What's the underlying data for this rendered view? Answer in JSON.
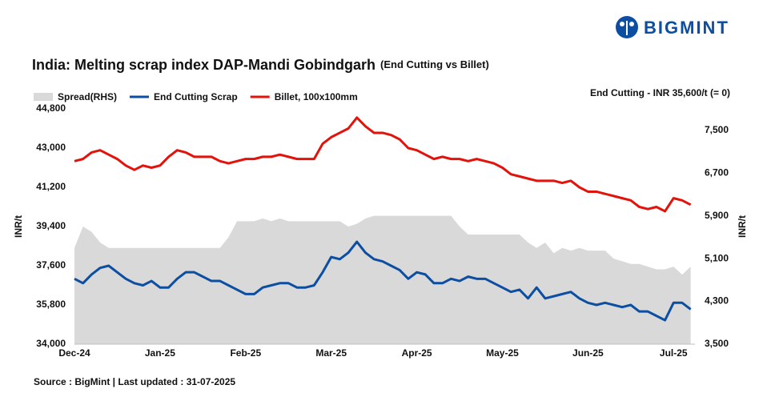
{
  "logo": "BIGMINT",
  "source": "Source : BigMint | Last updated : 31-07-2025",
  "chart_data": {
    "type": "line",
    "title": "India: Melting scrap index DAP-Mandi Gobindgarh",
    "subtitle": "(End Cutting vs Billet)",
    "annotation": "End Cutting - INR 35,600/t (= 0)",
    "ylabel": "INR/t",
    "y2label": "INR/t",
    "legend": "top-left",
    "categories": [
      "Dec-24",
      null,
      null,
      null,
      null,
      null,
      null,
      null,
      null,
      null,
      "Jan-25",
      null,
      null,
      null,
      null,
      null,
      null,
      null,
      null,
      null,
      "Feb-25",
      null,
      null,
      null,
      null,
      null,
      null,
      null,
      null,
      null,
      "Mar-25",
      null,
      null,
      null,
      null,
      null,
      null,
      null,
      null,
      null,
      "Apr-25",
      null,
      null,
      null,
      null,
      null,
      null,
      null,
      null,
      null,
      "May-25",
      null,
      null,
      null,
      null,
      null,
      null,
      null,
      null,
      null,
      "Jun-25",
      null,
      null,
      null,
      null,
      null,
      null,
      null,
      null,
      null,
      "Jul-25",
      null,
      null
    ],
    "series": [
      {
        "name": "Spread(RHS)",
        "type": "area",
        "axis": "y2",
        "color": "#d9d9d9",
        "values": [
          5300,
          5700,
          5600,
          5400,
          5300,
          5300,
          5300,
          5300,
          5300,
          5300,
          5300,
          5300,
          5300,
          5300,
          5300,
          5300,
          5300,
          5300,
          5500,
          5800,
          5800,
          5800,
          5850,
          5800,
          5850,
          5800,
          5800,
          5800,
          5800,
          5800,
          5800,
          5800,
          5700,
          5750,
          5850,
          5900,
          5900,
          5900,
          5900,
          5900,
          5900,
          5900,
          5900,
          5900,
          5900,
          5700,
          5550,
          5550,
          5550,
          5550,
          5550,
          5550,
          5550,
          5400,
          5300,
          5400,
          5200,
          5300,
          5250,
          5300,
          5250,
          5250,
          5250,
          5100,
          5050,
          5000,
          5000,
          4950,
          4900,
          4900,
          4950,
          4800,
          4950
        ]
      },
      {
        "name": "End Cutting Scrap",
        "type": "line",
        "color": "#0b4ea2",
        "values": [
          37000,
          36800,
          37200,
          37500,
          37600,
          37300,
          37000,
          36800,
          36700,
          36900,
          36600,
          36600,
          37000,
          37300,
          37300,
          37100,
          36900,
          36900,
          36700,
          36500,
          36300,
          36300,
          36600,
          36700,
          36800,
          36800,
          36600,
          36600,
          36700,
          37300,
          38000,
          37900,
          38200,
          38700,
          38200,
          37900,
          37800,
          37600,
          37400,
          37000,
          37300,
          37200,
          36800,
          36800,
          37000,
          36900,
          37100,
          37000,
          37000,
          36800,
          36600,
          36400,
          36500,
          36100,
          36600,
          36100,
          36200,
          36300,
          36400,
          36100,
          35900,
          35800,
          35900,
          35800,
          35700,
          35800,
          35500,
          35500,
          35300,
          35100,
          35900,
          35900,
          35600
        ]
      },
      {
        "name": "Billet, 100x100mm",
        "type": "line",
        "color": "#e3120b",
        "values": [
          42400,
          42500,
          42800,
          42900,
          42700,
          42500,
          42200,
          42000,
          42200,
          42100,
          42200,
          42600,
          42900,
          42800,
          42600,
          42600,
          42600,
          42400,
          42300,
          42400,
          42500,
          42500,
          42600,
          42600,
          42700,
          42600,
          42500,
          42500,
          42500,
          43200,
          43500,
          43700,
          43900,
          44400,
          44000,
          43700,
          43700,
          43600,
          43400,
          43000,
          42900,
          42700,
          42500,
          42600,
          42500,
          42500,
          42400,
          42500,
          42400,
          42300,
          42100,
          41800,
          41700,
          41600,
          41500,
          41500,
          41500,
          41400,
          41500,
          41200,
          41000,
          41000,
          40900,
          40800,
          40700,
          40600,
          40300,
          40200,
          40300,
          40100,
          40700,
          40600,
          40400
        ]
      }
    ],
    "ylim": [
      34000,
      44800
    ],
    "yticks": [
      {
        "value": 34000,
        "label": "34,000"
      },
      {
        "value": 35800,
        "label": "35,800"
      },
      {
        "value": 37600,
        "label": "37,600"
      },
      {
        "value": 39400,
        "label": "39,400"
      },
      {
        "value": 41200,
        "label": "41,200"
      },
      {
        "value": 43000,
        "label": "43,000"
      },
      {
        "value": 44800,
        "label": "44,800"
      }
    ],
    "y2lim": [
      3500,
      7900
    ],
    "y2ticks": [
      {
        "value": 3500,
        "label": "3,500"
      },
      {
        "value": 4300,
        "label": "4,300"
      },
      {
        "value": 5100,
        "label": "5,100"
      },
      {
        "value": 5900,
        "label": "5,900"
      },
      {
        "value": 6700,
        "label": "6,700"
      },
      {
        "value": 7500,
        "label": "7,500"
      }
    ],
    "grid": false
  }
}
